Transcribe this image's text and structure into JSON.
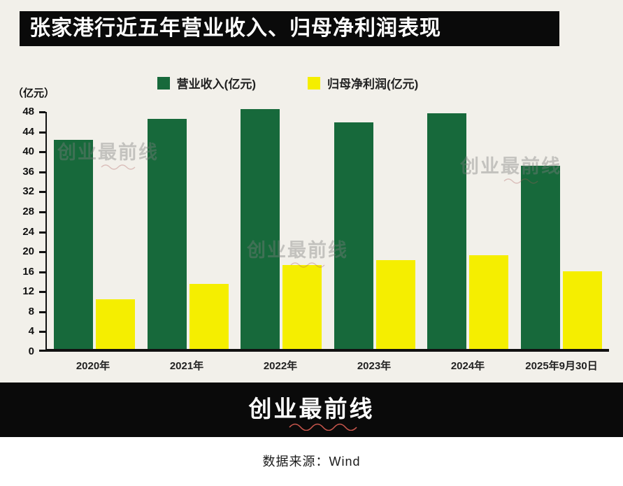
{
  "title": "张家港行近五年营业收入、归母净利润表现",
  "unit_label": "（亿元）",
  "legend": [
    {
      "label": "营业收入(亿元)",
      "color": "#17693b"
    },
    {
      "label": "归母净利润(亿元)",
      "color": "#f5ee00"
    }
  ],
  "watermark": {
    "text": "创业最前线"
  },
  "footer": {
    "logo": "创业最前线"
  },
  "source": "数据来源：Wind",
  "chart_data": {
    "type": "bar",
    "title": "张家港行近五年营业收入、归母净利润表现",
    "categories": [
      "2020年",
      "2021年",
      "2022年",
      "2023年",
      "2024年",
      "2025年9月30日"
    ],
    "series": [
      {
        "key": "revenue",
        "name": "营业收入(亿元)",
        "color": "#17693b",
        "values": [
          41.8,
          46.1,
          48.0,
          45.3,
          47.2,
          36.6
        ]
      },
      {
        "key": "net-profit",
        "name": "归母净利润(亿元)",
        "color": "#f5ee00",
        "values": [
          10.0,
          13.0,
          16.8,
          17.8,
          18.8,
          15.6
        ]
      }
    ],
    "xlabel": "",
    "ylabel": "（亿元）",
    "ylim": [
      0,
      48
    ],
    "ytick_step": 4,
    "grid": false,
    "legend_position": "top"
  }
}
